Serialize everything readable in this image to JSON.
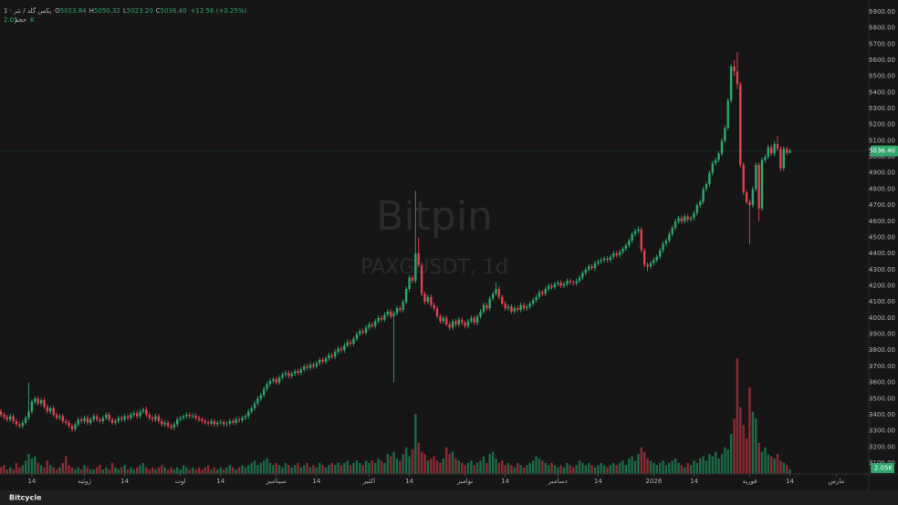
{
  "header": {
    "symbol": "پکس گلد / تتر · 1",
    "ohlc_letters": [
      "O",
      "H",
      "L",
      "C"
    ],
    "open": "5023.84",
    "high": "5050.32",
    "low": "5023.20",
    "close": "5036.40",
    "change": "+12.56 (+0.25%)",
    "volume_name": "حجم",
    "volume": "2.05K"
  },
  "footer": "Bitcycle",
  "chart_data": {
    "type": "candlestick",
    "watermark": [
      "Bitpin",
      "PAXGUSDT, 1d"
    ],
    "up_color": "#2ea56b",
    "down_color": "#e0434d",
    "up_volume_color": "#1d6a47",
    "down_volume_color": "#8e2b32",
    "grid": false,
    "last_price_label": "5036.40",
    "volume_label": "2.05K",
    "xlim": [
      -0.3,
      280.5
    ],
    "xticks": [
      {
        "value": 10,
        "label": "14"
      },
      {
        "value": 27,
        "label": "ژوئیه"
      },
      {
        "value": 40,
        "label": "14"
      },
      {
        "value": 58,
        "label": "اوت"
      },
      {
        "value": 71,
        "label": "14"
      },
      {
        "value": 89,
        "label": "سپتامبر"
      },
      {
        "value": 102,
        "label": "14"
      },
      {
        "value": 119,
        "label": "اکتبر"
      },
      {
        "value": 132,
        "label": "14"
      },
      {
        "value": 150,
        "label": "نوامبر"
      },
      {
        "value": 163,
        "label": "14"
      },
      {
        "value": 180,
        "label": "دسامبر"
      },
      {
        "value": 193,
        "label": "14"
      },
      {
        "value": 211,
        "label": "2026"
      },
      {
        "value": 224,
        "label": "14"
      },
      {
        "value": 242,
        "label": "فوریه"
      },
      {
        "value": 255,
        "label": "14"
      },
      {
        "value": 270,
        "label": "مارس"
      }
    ],
    "ylim": [
      3032,
      5973
    ],
    "yticks": [
      {
        "value": 3100,
        "label": "3100.00"
      },
      {
        "value": 3200,
        "label": "3200.00"
      },
      {
        "value": 3300,
        "label": "3300.00"
      },
      {
        "value": 3400,
        "label": "3400.00"
      },
      {
        "value": 3500,
        "label": "3500.00"
      },
      {
        "value": 3600,
        "label": "3600.00"
      },
      {
        "value": 3700,
        "label": "3700.00"
      },
      {
        "value": 3800,
        "label": "3800.00"
      },
      {
        "value": 3900,
        "label": "3900.00"
      },
      {
        "value": 4000,
        "label": "4000.00"
      },
      {
        "value": 4100,
        "label": "4100.00"
      },
      {
        "value": 4200,
        "label": "4200.00"
      },
      {
        "value": 4300,
        "label": "4300.00"
      },
      {
        "value": 4400,
        "label": "4400.00"
      },
      {
        "value": 4500,
        "label": "4500.00"
      },
      {
        "value": 4600,
        "label": "4600.00"
      },
      {
        "value": 4700,
        "label": "4700.00"
      },
      {
        "value": 4800,
        "label": "4800.00"
      },
      {
        "value": 4900,
        "label": "4900.00"
      },
      {
        "value": 5000,
        "label": "5000.00"
      },
      {
        "value": 5100,
        "label": "5100.00"
      },
      {
        "value": 5200,
        "label": "5200.00"
      },
      {
        "value": 5300,
        "label": "5300.00"
      },
      {
        "value": 5400,
        "label": "5400.00"
      },
      {
        "value": 5500,
        "label": "5500.00"
      },
      {
        "value": 5600,
        "label": "5600.00"
      },
      {
        "value": 5700,
        "label": "5700.00"
      },
      {
        "value": 5800,
        "label": "5800.00"
      },
      {
        "value": 5900,
        "label": "5900.00"
      }
    ],
    "vlim": [
      0,
      213
    ],
    "open": [
      3420,
      3400,
      3385,
      3370,
      3390,
      3360,
      3340,
      3330,
      3350,
      3380,
      3420,
      3480,
      3500,
      3470,
      3490,
      3450,
      3420,
      3440,
      3400,
      3380,
      3390,
      3360,
      3350,
      3330,
      3310,
      3340,
      3370,
      3360,
      3380,
      3350,
      3370,
      3390,
      3370,
      3360,
      3380,
      3400,
      3370,
      3350,
      3360,
      3380,
      3370,
      3390,
      3380,
      3400,
      3410,
      3390,
      3420,
      3430,
      3400,
      3380,
      3370,
      3390,
      3360,
      3340,
      3350,
      3330,
      3320,
      3340,
      3370,
      3380,
      3390,
      3400,
      3390,
      3395,
      3380,
      3370,
      3360,
      3350,
      3345,
      3360,
      3340,
      3350,
      3355,
      3340,
      3345,
      3360,
      3350,
      3370,
      3365,
      3380,
      3390,
      3420,
      3440,
      3470,
      3500,
      3520,
      3560,
      3590,
      3610,
      3620,
      3600,
      3630,
      3650,
      3660,
      3640,
      3655,
      3670,
      3660,
      3680,
      3700,
      3690,
      3710,
      3700,
      3720,
      3740,
      3730,
      3750,
      3770,
      3760,
      3790,
      3810,
      3800,
      3830,
      3850,
      3840,
      3870,
      3900,
      3920,
      3910,
      3940,
      3960,
      3950,
      3980,
      4000,
      3990,
      4020,
      4040,
      4010,
      4030,
      4060,
      4050,
      4100,
      4180,
      4250,
      4230,
      4400,
      4330,
      4150,
      4100,
      4130,
      4080,
      4060,
      4010,
      3980,
      4000,
      3960,
      3940,
      3980,
      3960,
      3990,
      3970,
      3950,
      3980,
      4000,
      3970,
      4010,
      4040,
      4080,
      4060,
      4120,
      4150,
      4180,
      4130,
      4090,
      4060,
      4070,
      4040,
      4060,
      4050,
      4080,
      4060,
      4070,
      4090,
      4110,
      4130,
      4160,
      4150,
      4180,
      4200,
      4190,
      4210,
      4220,
      4200,
      4210,
      4230,
      4220,
      4215,
      4230,
      4250,
      4280,
      4300,
      4320,
      4310,
      4340,
      4350,
      4360,
      4370,
      4360,
      4380,
      4400,
      4390,
      4410,
      4430,
      4450,
      4480,
      4520,
      4540,
      4550,
      4420,
      4330,
      4320,
      4340,
      4360,
      4380,
      4420,
      4460,
      4480,
      4520,
      4560,
      4600,
      4620,
      4600,
      4630,
      4610,
      4620,
      4650,
      4700,
      4720,
      4800,
      4830,
      4900,
      4960,
      4980,
      5020,
      5100,
      5180,
      5350,
      5560,
      5530,
      5450,
      4950,
      4780,
      4720,
      4700,
      4800,
      4950,
      4680,
      4980,
      5000,
      5060,
      5020,
      5080,
      5050,
      4930,
      5050,
      5023.84
    ],
    "high": [
      3435,
      3415,
      3400,
      3405,
      3405,
      3375,
      3355,
      3365,
      3395,
      3600,
      3495,
      3515,
      3515,
      3505,
      3505,
      3465,
      3455,
      3455,
      3415,
      3405,
      3405,
      3375,
      3365,
      3345,
      3355,
      3385,
      3385,
      3395,
      3395,
      3385,
      3405,
      3405,
      3385,
      3395,
      3415,
      3415,
      3385,
      3375,
      3395,
      3395,
      3405,
      3405,
      3415,
      3425,
      3425,
      3435,
      3445,
      3450,
      3415,
      3395,
      3405,
      3405,
      3375,
      3365,
      3365,
      3345,
      3355,
      3385,
      3395,
      3405,
      3415,
      3415,
      3410,
      3410,
      3395,
      3385,
      3375,
      3365,
      3375,
      3375,
      3365,
      3370,
      3370,
      3360,
      3375,
      3375,
      3385,
      3385,
      3395,
      3405,
      3435,
      3455,
      3485,
      3515,
      3535,
      3575,
      3605,
      3625,
      3635,
      3635,
      3645,
      3665,
      3675,
      3675,
      3670,
      3685,
      3685,
      3695,
      3715,
      3715,
      3725,
      3725,
      3735,
      3755,
      3755,
      3765,
      3785,
      3785,
      3805,
      3825,
      3825,
      3845,
      3865,
      3865,
      3885,
      3915,
      3935,
      3935,
      3955,
      3975,
      3975,
      3995,
      4015,
      4015,
      4035,
      4055,
      4055,
      4045,
      4075,
      4075,
      4115,
      4195,
      4265,
      4265,
      4790,
      4500,
      4345,
      4165,
      4145,
      4145,
      4095,
      4075,
      4025,
      4015,
      4015,
      3975,
      3995,
      3995,
      4005,
      4005,
      3985,
      3995,
      4015,
      4015,
      4025,
      4055,
      4095,
      4095,
      4135,
      4165,
      4220,
      4195,
      4145,
      4105,
      4085,
      4085,
      4075,
      4075,
      4095,
      4095,
      4085,
      4105,
      4125,
      4145,
      4175,
      4175,
      4195,
      4215,
      4215,
      4225,
      4235,
      4235,
      4225,
      4245,
      4245,
      4235,
      4245,
      4265,
      4295,
      4315,
      4335,
      4335,
      4355,
      4365,
      4375,
      4385,
      4385,
      4395,
      4415,
      4415,
      4425,
      4445,
      4465,
      4495,
      4535,
      4555,
      4570,
      4565,
      4435,
      4345,
      4355,
      4375,
      4395,
      4435,
      4475,
      4495,
      4535,
      4575,
      4615,
      4635,
      4635,
      4645,
      4645,
      4635,
      4665,
      4715,
      4735,
      4815,
      4845,
      4915,
      4975,
      4995,
      5035,
      5115,
      5195,
      5365,
      5575,
      5600,
      5650,
      5465,
      4965,
      4795,
      4735,
      4815,
      4965,
      4965,
      4995,
      5015,
      5075,
      5075,
      5095,
      5130,
      5065,
      5065,
      5065,
      5050.32
    ],
    "low": [
      3385,
      3370,
      3355,
      3355,
      3345,
      3325,
      3315,
      3315,
      3335,
      3365,
      3405,
      3465,
      3455,
      3455,
      3435,
      3405,
      3405,
      3385,
      3365,
      3365,
      3345,
      3335,
      3315,
      3295,
      3295,
      3325,
      3345,
      3345,
      3335,
      3335,
      3355,
      3355,
      3345,
      3345,
      3365,
      3355,
      3335,
      3335,
      3345,
      3355,
      3355,
      3365,
      3365,
      3385,
      3375,
      3375,
      3405,
      3385,
      3365,
      3355,
      3355,
      3345,
      3325,
      3325,
      3315,
      3305,
      3305,
      3325,
      3355,
      3365,
      3375,
      3375,
      3375,
      3365,
      3355,
      3345,
      3335,
      3330,
      3330,
      3325,
      3325,
      3335,
      3325,
      3325,
      3330,
      3335,
      3335,
      3350,
      3350,
      3365,
      3375,
      3405,
      3425,
      3455,
      3485,
      3505,
      3545,
      3575,
      3595,
      3585,
      3585,
      3615,
      3635,
      3625,
      3625,
      3640,
      3645,
      3645,
      3665,
      3675,
      3675,
      3685,
      3685,
      3705,
      3715,
      3715,
      3735,
      3745,
      3745,
      3775,
      3785,
      3785,
      3815,
      3825,
      3825,
      3855,
      3885,
      3895,
      3895,
      3925,
      3935,
      3935,
      3965,
      3975,
      3975,
      4005,
      3995,
      3600,
      4015,
      4035,
      4035,
      4085,
      4165,
      4215,
      4215,
      4315,
      4135,
      4085,
      4085,
      4065,
      4045,
      3995,
      3965,
      3965,
      3945,
      3925,
      3925,
      3945,
      3945,
      3955,
      3935,
      3935,
      3965,
      3955,
      3955,
      3995,
      4025,
      4045,
      4045,
      4105,
      4135,
      4115,
      4075,
      4045,
      4045,
      4025,
      4025,
      4035,
      4035,
      4045,
      4045,
      4055,
      4075,
      4095,
      4115,
      4135,
      4135,
      4165,
      4175,
      4175,
      4195,
      4185,
      4185,
      4195,
      4205,
      4200,
      4200,
      4215,
      4235,
      4265,
      4285,
      4295,
      4295,
      4325,
      4335,
      4345,
      4345,
      4345,
      4365,
      4375,
      4375,
      4395,
      4415,
      4435,
      4465,
      4505,
      4525,
      4405,
      4315,
      4290,
      4305,
      4325,
      4345,
      4365,
      4405,
      4445,
      4465,
      4505,
      4545,
      4585,
      4585,
      4585,
      4595,
      4595,
      4605,
      4635,
      4685,
      4705,
      4785,
      4815,
      4885,
      4945,
      4965,
      5005,
      5085,
      5165,
      5335,
      5500,
      5420,
      4935,
      4765,
      4705,
      4460,
      4685,
      4785,
      4600,
      4665,
      4965,
      4985,
      5005,
      5005,
      5035,
      4910,
      4915,
      5010,
      5023.2
    ],
    "close": [
      3400,
      3385,
      3370,
      3390,
      3360,
      3340,
      3330,
      3350,
      3380,
      3420,
      3480,
      3500,
      3470,
      3490,
      3450,
      3420,
      3440,
      3400,
      3380,
      3390,
      3360,
      3350,
      3330,
      3310,
      3340,
      3370,
      3360,
      3380,
      3350,
      3370,
      3390,
      3370,
      3360,
      3380,
      3400,
      3370,
      3350,
      3360,
      3380,
      3370,
      3390,
      3380,
      3400,
      3410,
      3390,
      3420,
      3430,
      3400,
      3380,
      3370,
      3390,
      3360,
      3340,
      3350,
      3330,
      3320,
      3340,
      3370,
      3380,
      3390,
      3400,
      3390,
      3395,
      3380,
      3370,
      3360,
      3350,
      3345,
      3360,
      3340,
      3350,
      3355,
      3340,
      3345,
      3360,
      3350,
      3370,
      3365,
      3380,
      3390,
      3420,
      3440,
      3470,
      3500,
      3520,
      3560,
      3590,
      3610,
      3620,
      3600,
      3630,
      3650,
      3660,
      3640,
      3655,
      3670,
      3660,
      3680,
      3700,
      3690,
      3710,
      3700,
      3720,
      3740,
      3730,
      3750,
      3770,
      3760,
      3790,
      3810,
      3800,
      3830,
      3850,
      3840,
      3870,
      3900,
      3920,
      3910,
      3940,
      3960,
      3950,
      3980,
      4000,
      3990,
      4020,
      4040,
      4010,
      4030,
      4060,
      4050,
      4100,
      4180,
      4250,
      4230,
      4400,
      4330,
      4150,
      4100,
      4130,
      4080,
      4060,
      4010,
      3980,
      4000,
      3960,
      3940,
      3980,
      3960,
      3990,
      3970,
      3950,
      3980,
      4000,
      3970,
      4010,
      4040,
      4080,
      4060,
      4120,
      4150,
      4180,
      4130,
      4090,
      4060,
      4070,
      4040,
      4060,
      4050,
      4080,
      4060,
      4070,
      4090,
      4110,
      4130,
      4160,
      4150,
      4180,
      4200,
      4190,
      4210,
      4220,
      4200,
      4210,
      4230,
      4220,
      4215,
      4230,
      4250,
      4280,
      4300,
      4320,
      4310,
      4340,
      4350,
      4360,
      4370,
      4360,
      4380,
      4400,
      4390,
      4410,
      4430,
      4450,
      4480,
      4520,
      4540,
      4550,
      4420,
      4330,
      4320,
      4340,
      4360,
      4380,
      4420,
      4460,
      4480,
      4520,
      4560,
      4600,
      4620,
      4600,
      4630,
      4610,
      4620,
      4650,
      4700,
      4720,
      4800,
      4830,
      4900,
      4960,
      4980,
      5020,
      5100,
      5180,
      5350,
      5560,
      5530,
      5450,
      4950,
      4780,
      4720,
      4700,
      4800,
      4950,
      4680,
      4980,
      5000,
      5060,
      5020,
      5080,
      5050,
      4930,
      5050,
      5023.84,
      5036.4
    ],
    "volume": [
      3,
      4,
      2,
      3,
      2,
      5,
      3,
      4,
      6,
      9,
      7,
      8,
      5,
      4,
      3,
      6,
      4,
      3,
      2,
      3,
      5,
      8,
      4,
      3,
      2,
      3,
      2,
      4,
      3,
      2,
      2,
      3,
      4,
      2,
      3,
      2,
      5,
      3,
      2,
      3,
      4,
      2,
      3,
      2,
      3,
      4,
      5,
      3,
      2,
      3,
      2,
      3,
      4,
      3,
      2,
      3,
      2,
      3,
      2,
      4,
      3,
      2,
      3,
      2,
      3,
      2,
      3,
      4,
      2,
      3,
      2,
      3,
      2,
      3,
      4,
      3,
      2,
      3,
      4,
      3,
      4,
      5,
      6,
      4,
      5,
      6,
      7,
      5,
      4,
      5,
      4,
      3,
      5,
      4,
      3,
      4,
      5,
      3,
      4,
      5,
      3,
      4,
      3,
      5,
      4,
      3,
      4,
      5,
      4,
      5,
      4,
      5,
      6,
      4,
      5,
      6,
      5,
      4,
      6,
      5,
      6,
      5,
      7,
      6,
      5,
      9,
      8,
      10,
      7,
      6,
      9,
      12,
      8,
      11,
      27,
      14,
      10,
      9,
      6,
      7,
      8,
      6,
      5,
      7,
      12,
      9,
      10,
      7,
      6,
      5,
      4,
      5,
      6,
      4,
      5,
      6,
      8,
      5,
      9,
      10,
      7,
      5,
      6,
      4,
      5,
      4,
      3,
      5,
      4,
      3,
      4,
      5,
      6,
      8,
      7,
      6,
      5,
      4,
      5,
      4,
      3,
      4,
      3,
      5,
      4,
      3,
      4,
      6,
      5,
      4,
      5,
      4,
      3,
      4,
      5,
      4,
      3,
      4,
      5,
      4,
      5,
      6,
      4,
      7,
      8,
      6,
      9,
      12,
      10,
      7,
      6,
      5,
      4,
      5,
      6,
      4,
      5,
      6,
      7,
      5,
      4,
      3,
      5,
      4,
      6,
      5,
      7,
      8,
      6,
      9,
      8,
      10,
      7,
      9,
      12,
      11,
      18,
      25,
      52,
      30,
      22,
      16,
      39,
      28,
      25,
      14,
      10,
      12,
      9,
      8,
      7,
      9,
      6,
      5,
      4,
      2.05
    ]
  }
}
